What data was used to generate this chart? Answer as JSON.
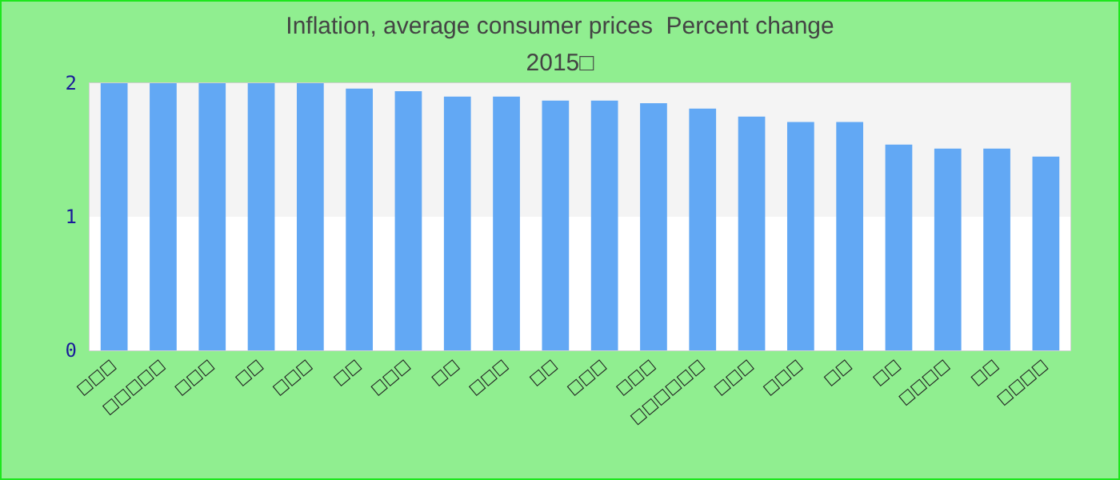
{
  "chart_data": {
    "type": "bar",
    "title": "Inflation, average consumer prices  Percent change",
    "subtitle": "2015□",
    "categories": [
      "□□□",
      "□□□□□",
      "□□□",
      "□□",
      "□□□",
      "□□",
      "□□□",
      "□□",
      "□□□",
      "□□",
      "□□□",
      "□□□",
      "□□□□□□",
      "□□□",
      "□□□",
      "□□",
      "□□",
      "□□□□",
      "□□",
      "□□□□"
    ],
    "values": [
      2,
      2,
      2,
      2,
      2,
      1.96,
      1.94,
      1.9,
      1.9,
      1.87,
      1.87,
      1.85,
      1.81,
      1.75,
      1.71,
      1.71,
      1.54,
      1.51,
      1.51,
      1.45
    ],
    "color": "#62a8f4",
    "ylim": [
      0,
      2
    ],
    "yticks": [
      0,
      1,
      2
    ],
    "bands": [
      {
        "axis": "y",
        "from": 0,
        "to": 1,
        "color": "#ffffff"
      },
      {
        "axis": "y",
        "from": 1,
        "to": 2,
        "color": "#f4f4f4"
      }
    ]
  }
}
